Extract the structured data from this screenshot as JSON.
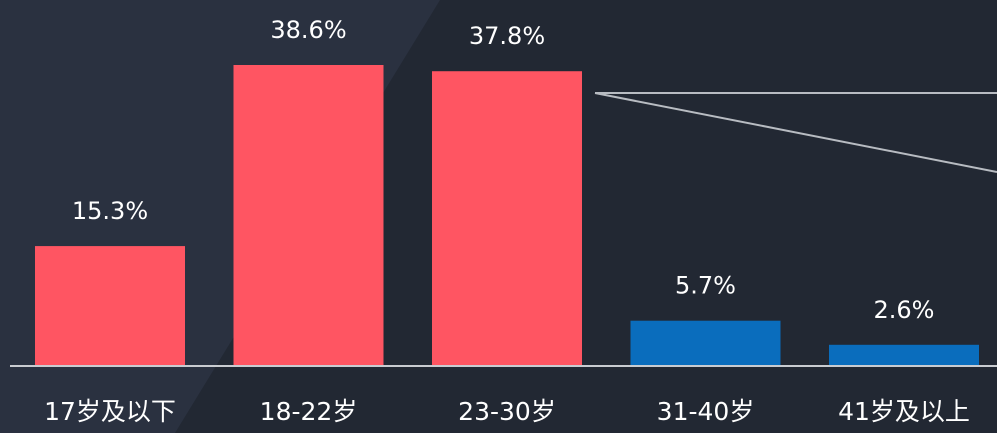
{
  "chart_data": {
    "type": "bar",
    "categories": [
      "17岁及以下",
      "18-22岁",
      "23-30岁",
      "31-40岁",
      "41岁及以上"
    ],
    "values": [
      15.3,
      38.6,
      37.8,
      5.7,
      2.6
    ],
    "value_labels": [
      "15.3%",
      "38.6%",
      "37.8%",
      "5.7%",
      "2.6%"
    ],
    "colors": [
      "#ff5562",
      "#ff5562",
      "#ff5562",
      "#0a6dbd",
      "#0a6dbd"
    ]
  }
}
